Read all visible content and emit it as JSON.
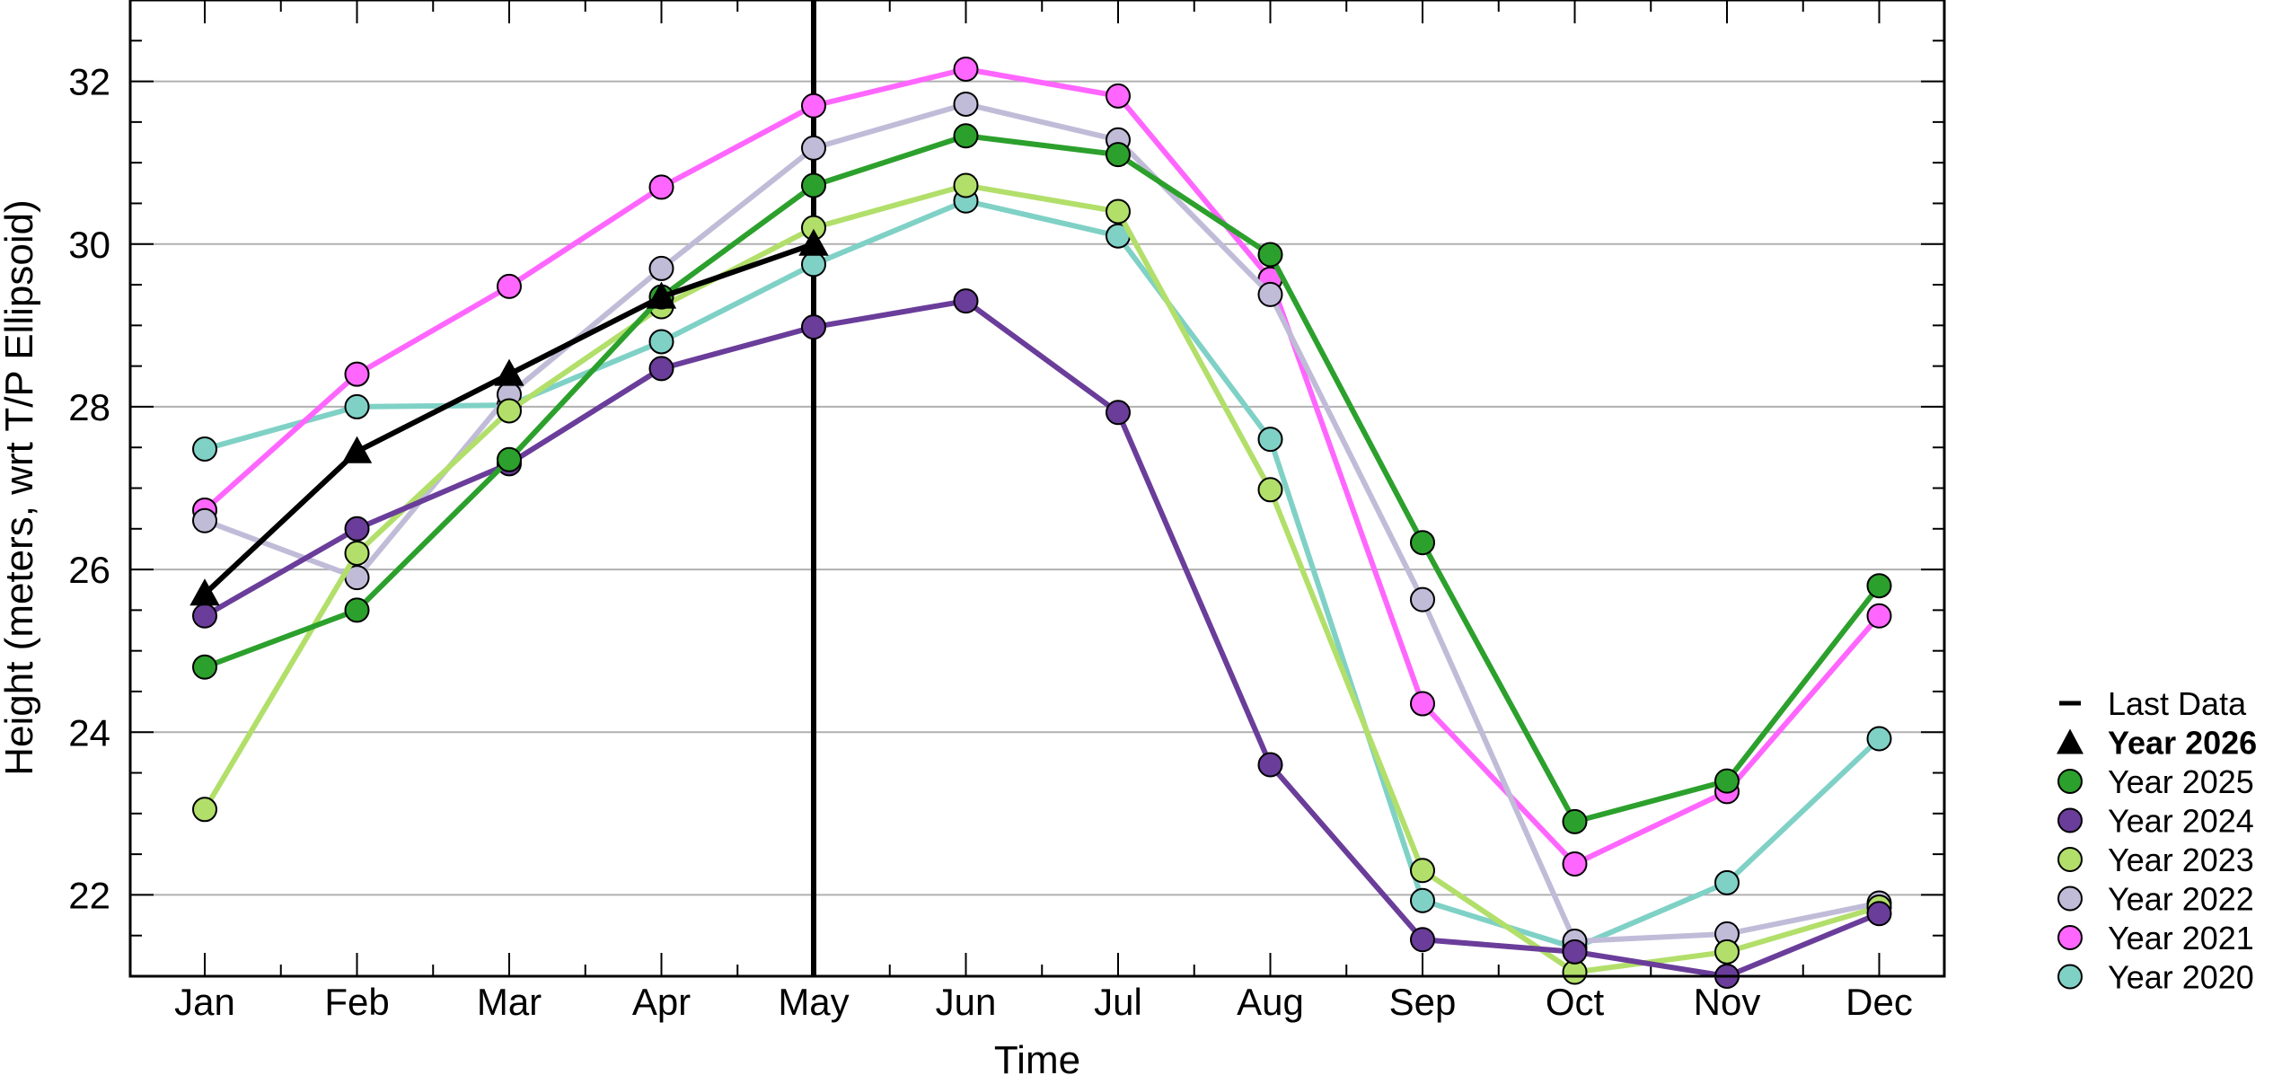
{
  "chart_data": {
    "type": "line",
    "title": "",
    "xlabel": "Time",
    "ylabel": "Height (meters, wrt T/P Ellipsoid)",
    "categories": [
      "Jan",
      "Feb",
      "Mar",
      "Apr",
      "May",
      "Jun",
      "Jul",
      "Aug",
      "Sep",
      "Oct",
      "Nov",
      "Dec"
    ],
    "ylim": [
      21,
      33
    ],
    "yticks": [
      22,
      24,
      26,
      28,
      30,
      32
    ],
    "grid": true,
    "legend_position": "right",
    "last_data_month": "May",
    "last_data_label": "Last Data",
    "series": [
      {
        "name": "Year 2026",
        "color": "#000000",
        "marker": "triangle",
        "bold": true,
        "values": [
          25.7,
          27.45,
          28.4,
          29.35,
          30.0,
          null,
          null,
          null,
          null,
          null,
          null,
          null
        ]
      },
      {
        "name": "Year 2025",
        "color": "#2ca02c",
        "marker": "circle",
        "values": [
          24.8,
          25.5,
          27.35,
          29.35,
          30.72,
          31.33,
          31.1,
          29.87,
          26.33,
          22.9,
          23.4,
          25.8
        ]
      },
      {
        "name": "Year 2024",
        "color": "#6a3d9a",
        "marker": "circle",
        "values": [
          25.43,
          26.5,
          27.3,
          28.47,
          28.98,
          29.3,
          27.93,
          23.6,
          21.45,
          21.3,
          21.0,
          21.77
        ]
      },
      {
        "name": "Year 2023",
        "color": "#b2df6a",
        "marker": "circle",
        "values": [
          23.05,
          26.2,
          27.95,
          29.23,
          30.2,
          30.72,
          30.4,
          26.98,
          22.3,
          21.05,
          21.3,
          21.85
        ]
      },
      {
        "name": "Year 2022",
        "color": "#c0bcd8",
        "marker": "circle",
        "values": [
          26.6,
          25.9,
          28.15,
          29.7,
          31.18,
          31.72,
          31.28,
          29.38,
          25.63,
          21.43,
          21.52,
          21.9
        ]
      },
      {
        "name": "Year 2021",
        "color": "#ff66ff",
        "marker": "circle",
        "values": [
          26.73,
          28.4,
          29.48,
          30.7,
          31.7,
          32.15,
          31.82,
          29.57,
          24.35,
          22.38,
          23.27,
          25.43
        ]
      },
      {
        "name": "Year 2020",
        "color": "#7fd1c6",
        "marker": "circle",
        "values": [
          27.48,
          28.0,
          28.02,
          28.8,
          29.75,
          30.53,
          30.1,
          27.6,
          21.93,
          21.35,
          22.15,
          23.92
        ]
      }
    ]
  }
}
